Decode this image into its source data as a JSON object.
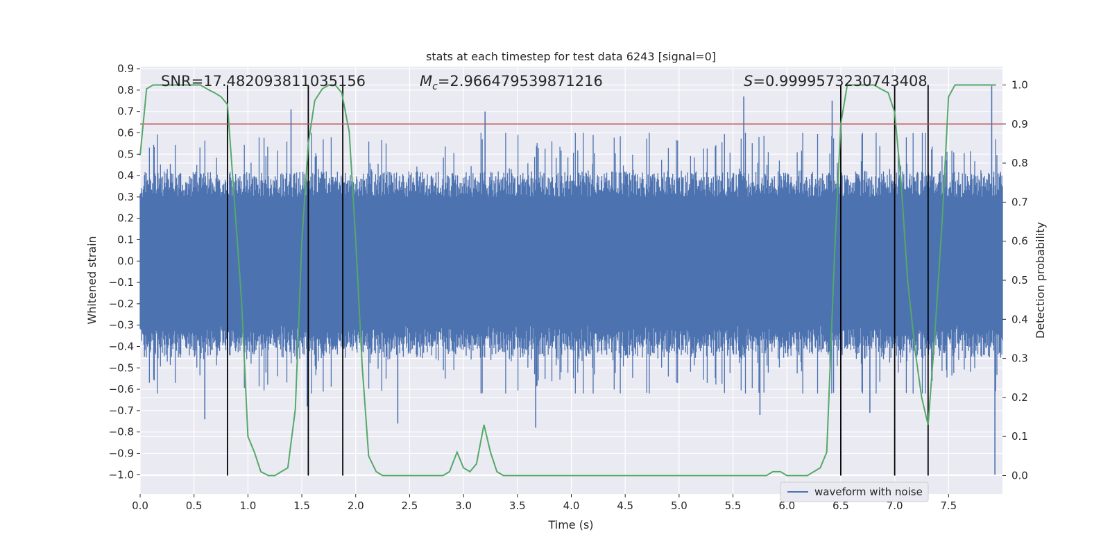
{
  "chart_data": {
    "type": "line",
    "title": "stats at each timestep for test data 6243 [signal=0]",
    "xlabel": "Time (s)",
    "ylabel": "Whitened strain",
    "y2label": "Detection probability",
    "xlim": [
      0.0,
      8.0
    ],
    "ylim": [
      -1.09,
      0.91
    ],
    "y2lim": [
      -0.047,
      1.047
    ],
    "x_ticks": [
      0.0,
      0.5,
      1.0,
      1.5,
      2.0,
      2.5,
      3.0,
      3.5,
      4.0,
      4.5,
      5.0,
      5.5,
      6.0,
      6.5,
      7.0,
      7.5
    ],
    "x_tick_labels": [
      "0.0",
      "0.5",
      "1.0",
      "1.5",
      "2.0",
      "2.5",
      "3.0",
      "3.5",
      "4.0",
      "4.5",
      "5.0",
      "5.5",
      "6.0",
      "6.5",
      "7.0",
      "7.5"
    ],
    "y_ticks": [
      0.9,
      0.8,
      0.7,
      0.6,
      0.5,
      0.4,
      0.3,
      0.2,
      0.1,
      0.0,
      -0.1,
      -0.2,
      -0.3,
      -0.4,
      -0.5,
      -0.6,
      -0.7,
      -0.8,
      -0.9,
      -1.0
    ],
    "y_tick_labels": [
      "0.9",
      "0.8",
      "0.7",
      "0.6",
      "0.5",
      "0.4",
      "0.3",
      "0.2",
      "0.1",
      "0.0",
      "−0.1",
      "−0.2",
      "−0.3",
      "−0.4",
      "−0.5",
      "−0.6",
      "−0.7",
      "−0.8",
      "−0.9",
      "−1.0"
    ],
    "y2_ticks": [
      1.0,
      0.9,
      0.8,
      0.7,
      0.6,
      0.5,
      0.4,
      0.3,
      0.2,
      0.1,
      0.0
    ],
    "y2_tick_labels": [
      "1.0",
      "0.9",
      "0.8",
      "0.7",
      "0.6",
      "0.5",
      "0.4",
      "0.3",
      "0.2",
      "0.1",
      "0.0"
    ],
    "annotations": {
      "snr": "SNR=17.482093811035156",
      "mc_symbol": "M",
      "mc_subscript": "c",
      "mc_value": "=2.966479539871216",
      "s_symbol": "S",
      "s_value": "=0.9999573230743408"
    },
    "legend": {
      "label": "waveform with noise",
      "position": "lower-right"
    },
    "threshold": {
      "value": 0.9,
      "axis": "y2",
      "color": "#c44e52"
    },
    "vertical_lines": [
      0.81,
      1.56,
      1.88,
      6.5,
      7.0,
      7.31
    ],
    "waveform": {
      "name": "waveform with noise",
      "color": "#4c72b0",
      "sample_count": 1400,
      "x_range": [
        0.0,
        8.0
      ],
      "envelope_core": 0.3,
      "spikes": [
        {
          "x": 1.4,
          "y": 0.71
        },
        {
          "x": 3.2,
          "y": 0.7
        },
        {
          "x": 5.6,
          "y": 0.77
        },
        {
          "x": 6.42,
          "y": 0.75
        },
        {
          "x": 7.9,
          "y": 0.82
        },
        {
          "x": 7.93,
          "y": -1.0
        },
        {
          "x": 3.67,
          "y": -0.78
        },
        {
          "x": 2.39,
          "y": -0.76
        },
        {
          "x": 0.6,
          "y": -0.74
        },
        {
          "x": 6.77,
          "y": -0.71
        },
        {
          "x": 5.75,
          "y": -0.72
        },
        {
          "x": 1.55,
          "y": -0.68
        }
      ]
    },
    "series": [
      {
        "name": "detection probability",
        "axis": "y2",
        "color": "#55a868",
        "x": [
          0.0,
          0.06,
          0.12,
          0.19,
          0.25,
          0.31,
          0.37,
          0.44,
          0.5,
          0.56,
          0.62,
          0.69,
          0.75,
          0.81,
          0.87,
          0.94,
          1.0,
          1.06,
          1.12,
          1.19,
          1.25,
          1.31,
          1.37,
          1.44,
          1.5,
          1.56,
          1.62,
          1.69,
          1.75,
          1.81,
          1.87,
          1.94,
          2.0,
          2.06,
          2.12,
          2.19,
          2.25,
          2.31,
          2.37,
          2.44,
          2.5,
          2.56,
          2.62,
          2.69,
          2.75,
          2.81,
          2.87,
          2.94,
          3.0,
          3.06,
          3.12,
          3.19,
          3.25,
          3.31,
          3.37,
          3.44,
          3.5,
          3.56,
          3.62,
          3.69,
          3.75,
          3.81,
          3.87,
          3.94,
          4.0,
          4.06,
          4.12,
          4.19,
          4.25,
          4.31,
          4.37,
          4.44,
          4.5,
          4.56,
          4.62,
          4.69,
          4.75,
          4.81,
          4.87,
          4.94,
          5.0,
          5.06,
          5.12,
          5.19,
          5.25,
          5.31,
          5.37,
          5.44,
          5.5,
          5.56,
          5.62,
          5.69,
          5.75,
          5.81,
          5.87,
          5.94,
          6.0,
          6.06,
          6.12,
          6.19,
          6.25,
          6.31,
          6.37,
          6.44,
          6.5,
          6.56,
          6.62,
          6.69,
          6.75,
          6.81,
          6.87,
          6.94,
          7.0,
          7.06,
          7.12,
          7.19,
          7.25,
          7.31,
          7.37,
          7.44,
          7.5,
          7.56,
          7.62,
          7.69,
          7.75,
          7.81,
          7.87,
          7.94
        ],
        "values": [
          0.82,
          0.99,
          1.0,
          1.0,
          1.0,
          1.0,
          1.0,
          1.0,
          1.0,
          1.0,
          0.99,
          0.98,
          0.97,
          0.95,
          0.72,
          0.45,
          0.1,
          0.06,
          0.01,
          0.0,
          0.0,
          0.01,
          0.02,
          0.17,
          0.6,
          0.85,
          0.96,
          0.99,
          1.0,
          1.0,
          0.98,
          0.88,
          0.6,
          0.28,
          0.05,
          0.01,
          0.0,
          0.0,
          0.0,
          0.0,
          0.0,
          0.0,
          0.0,
          0.0,
          0.0,
          0.0,
          0.01,
          0.06,
          0.02,
          0.01,
          0.03,
          0.13,
          0.06,
          0.01,
          0.0,
          0.0,
          0.0,
          0.0,
          0.0,
          0.0,
          0.0,
          0.0,
          0.0,
          0.0,
          0.0,
          0.0,
          0.0,
          0.0,
          0.0,
          0.0,
          0.0,
          0.0,
          0.0,
          0.0,
          0.0,
          0.0,
          0.0,
          0.0,
          0.0,
          0.0,
          0.0,
          0.0,
          0.0,
          0.0,
          0.0,
          0.0,
          0.0,
          0.0,
          0.0,
          0.0,
          0.0,
          0.0,
          0.0,
          0.0,
          0.01,
          0.01,
          0.0,
          0.0,
          0.0,
          0.0,
          0.01,
          0.02,
          0.06,
          0.55,
          0.9,
          1.0,
          1.0,
          1.0,
          1.0,
          1.0,
          0.99,
          0.98,
          0.93,
          0.75,
          0.5,
          0.32,
          0.2,
          0.13,
          0.35,
          0.65,
          0.97,
          1.0,
          1.0,
          1.0,
          1.0,
          1.0,
          1.0,
          1.0
        ]
      }
    ]
  }
}
